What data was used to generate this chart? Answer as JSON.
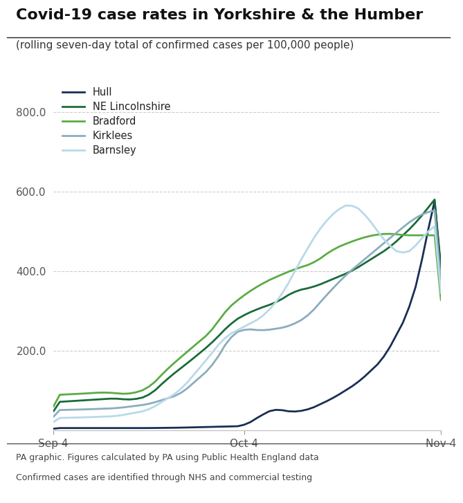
{
  "title": "Covid-19 case rates in Yorkshire & the Humber",
  "subtitle": "(rolling seven-day total of confirmed cases per 100,000 people)",
  "footnote1": "PA graphic. Figures calculated by PA using Public Health England data",
  "footnote2": "Confirmed cases are identified through NHS and commercial testing",
  "xtick_labels": [
    "Sep 4",
    "Oct 4",
    "Nov 4"
  ],
  "ytick_labels": [
    "200.0",
    "400.0",
    "600.0",
    "800.0"
  ],
  "ylim": [
    0,
    880
  ],
  "series": {
    "Hull": {
      "color": "#1a2e54",
      "linewidth": 2.0
    },
    "NE Lincolnshire": {
      "color": "#1a6b3a",
      "linewidth": 2.0
    },
    "Bradford": {
      "color": "#5aac44",
      "linewidth": 2.0
    },
    "Kirklees": {
      "color": "#8aadbe",
      "linewidth": 2.0
    },
    "Barnsley": {
      "color": "#b8d9e8",
      "linewidth": 2.0
    }
  },
  "bg_color": "#ffffff",
  "grid_color": "#cccccc",
  "title_fontsize": 16,
  "subtitle_fontsize": 11,
  "tick_fontsize": 11
}
